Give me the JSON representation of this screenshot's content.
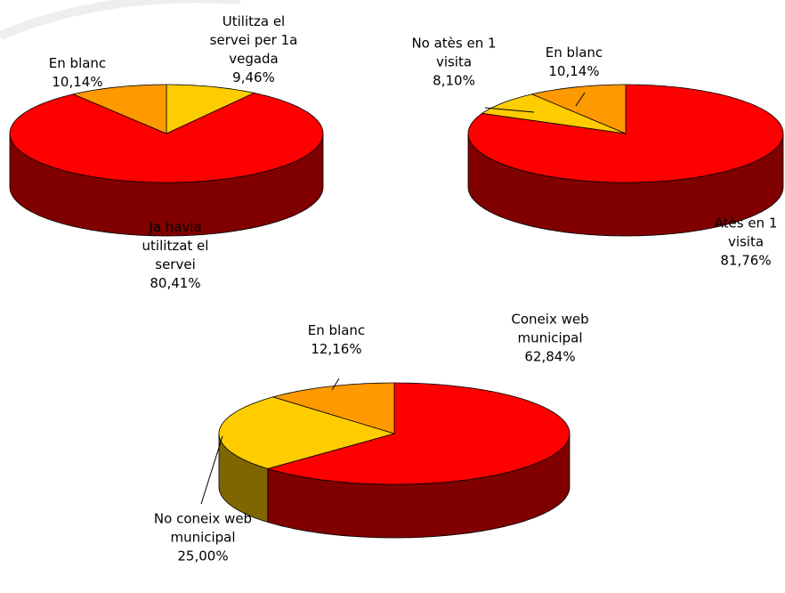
{
  "chart_data": [
    {
      "type": "pie",
      "categories": [
        "Utilitza el servei per 1a vegada",
        "Ja havia utilitzat el servei",
        "En blanc"
      ],
      "values": [
        9.46,
        80.41,
        10.14
      ],
      "value_labels": [
        "9,46%",
        "80,41%",
        "10,14%"
      ],
      "colors": [
        "#ffcc00",
        "#ff0000",
        "#ff9900"
      ]
    },
    {
      "type": "pie",
      "categories": [
        "Atès en 1 visita",
        "No atès en 1 visita",
        "En blanc"
      ],
      "values": [
        81.76,
        8.1,
        10.14
      ],
      "value_labels": [
        "81,76%",
        "8,10%",
        "10,14%"
      ],
      "colors": [
        "#ff0000",
        "#ffcc00",
        "#ff9900"
      ]
    },
    {
      "type": "pie",
      "categories": [
        "Coneix web municipal",
        "No coneix web municipal",
        "En blanc"
      ],
      "values": [
        62.84,
        25.0,
        12.16
      ],
      "value_labels": [
        "62,84%",
        "25,00%",
        "12,16%"
      ],
      "colors": [
        "#ff0000",
        "#ffcc00",
        "#ff9900"
      ]
    }
  ]
}
